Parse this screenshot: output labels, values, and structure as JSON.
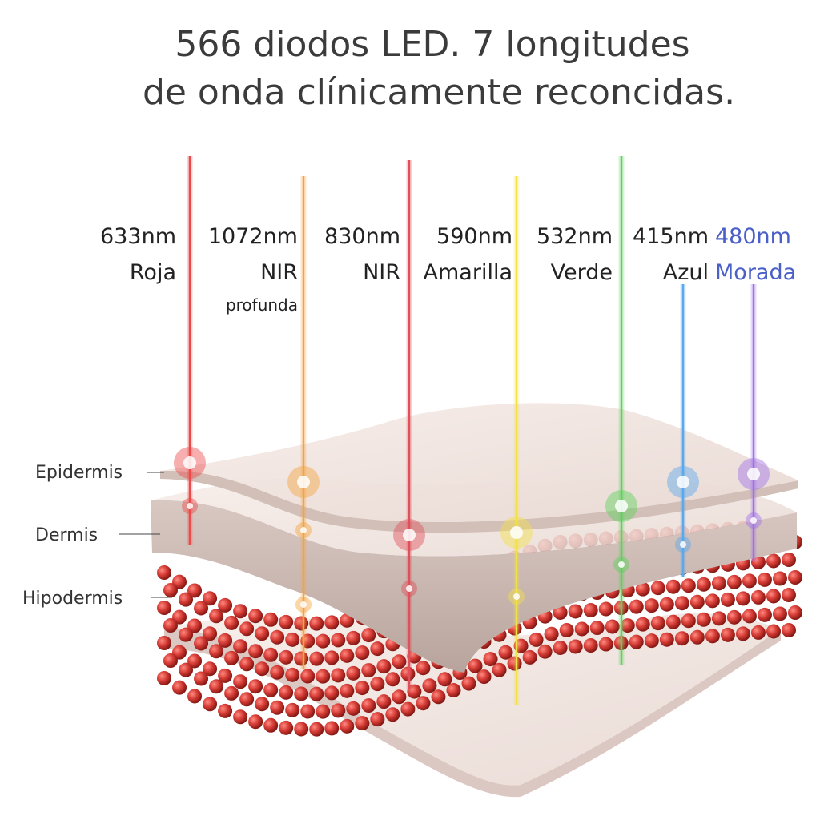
{
  "title": [
    "566 diodos LED. 7 longitudes",
    "de onda clínicamente reconcidas."
  ],
  "wavelengths": [
    {
      "wavelength": "633nm",
      "name": "Roja",
      "color": "#ec4b4b"
    },
    {
      "wavelength": "1072nm",
      "name": "NIR",
      "detail": "profunda",
      "color": "#f4a340"
    },
    {
      "wavelength": "830nm",
      "name": "NIR",
      "color": "#e0505a"
    },
    {
      "wavelength": "590nm",
      "name": "Amarilla",
      "color": "#f2e04a"
    },
    {
      "wavelength": "532nm",
      "name": "Verde",
      "color": "#5ad35a"
    },
    {
      "wavelength": "415nm",
      "name": "Azul",
      "color": "#5aa8ee"
    },
    {
      "wavelength": "480nm",
      "name": "Morada",
      "color": "#a070e8"
    }
  ],
  "layers": [
    "Epidermis",
    "Dermis",
    "Hipodermis"
  ]
}
